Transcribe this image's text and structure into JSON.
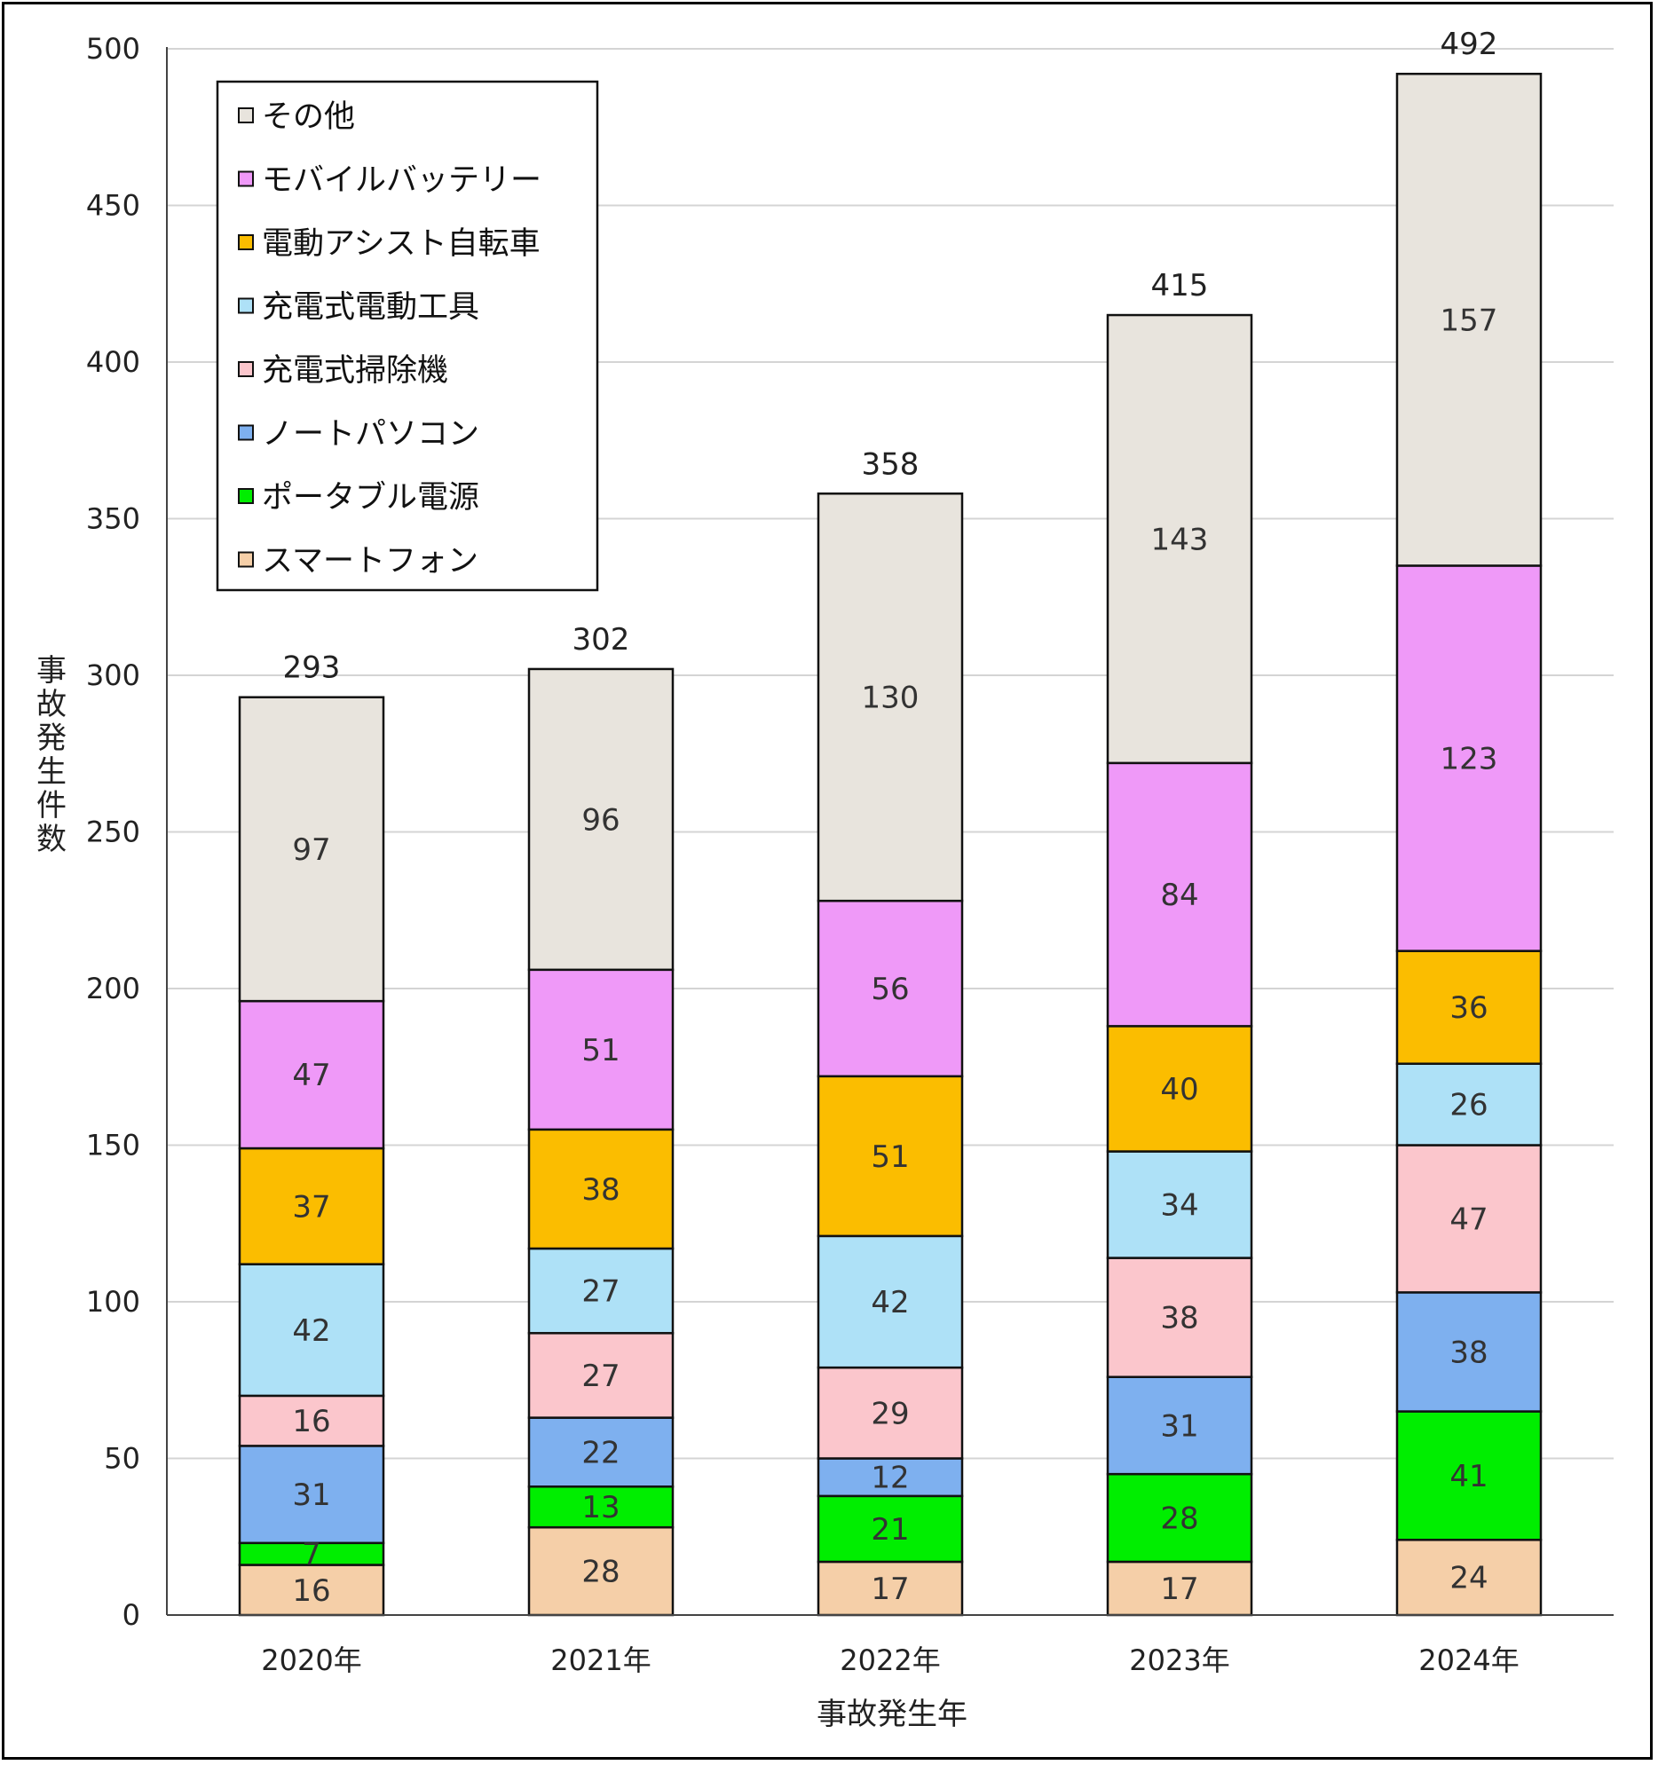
{
  "chart_data": {
    "type": "bar",
    "stacked": true,
    "categories": [
      "2020年",
      "2021年",
      "2022年",
      "2023年",
      "2024年"
    ],
    "series": [
      {
        "name": "スマートフォン",
        "color": "#f5cfa8",
        "values": [
          16,
          28,
          17,
          17,
          24
        ]
      },
      {
        "name": "ポータブル電源",
        "color": "#00ee00",
        "values": [
          7,
          13,
          21,
          28,
          41
        ]
      },
      {
        "name": "ノートパソコン",
        "color": "#7eb0ef",
        "values": [
          31,
          22,
          12,
          31,
          38
        ]
      },
      {
        "name": "充電式掃除機",
        "color": "#fbc6cc",
        "values": [
          16,
          27,
          29,
          38,
          47
        ]
      },
      {
        "name": "充電式電動工具",
        "color": "#aee1f7",
        "values": [
          42,
          27,
          42,
          34,
          26
        ]
      },
      {
        "name": "電動アシスト自転車",
        "color": "#fbbd00",
        "values": [
          37,
          38,
          51,
          40,
          36
        ]
      },
      {
        "name": "モバイルバッテリー",
        "color": "#ef99f8",
        "values": [
          47,
          51,
          56,
          84,
          123
        ]
      },
      {
        "name": "その他",
        "color": "#e8e4dd",
        "values": [
          97,
          96,
          130,
          143,
          157
        ]
      }
    ],
    "totals": [
      293,
      302,
      358,
      415,
      492
    ],
    "yticks": [
      0,
      50,
      100,
      150,
      200,
      250,
      300,
      350,
      400,
      450,
      500
    ],
    "ylim": [
      0,
      500
    ],
    "xlabel": "事故発生年",
    "ylabel": "事故発生件数",
    "grid": true,
    "legend_position": "top-left",
    "legend_order": [
      "その他",
      "モバイルバッテリー",
      "電動アシスト自転車",
      "充電式電動工具",
      "充電式掃除機",
      "ノートパソコン",
      "ポータブル電源",
      "スマートフォン"
    ]
  }
}
